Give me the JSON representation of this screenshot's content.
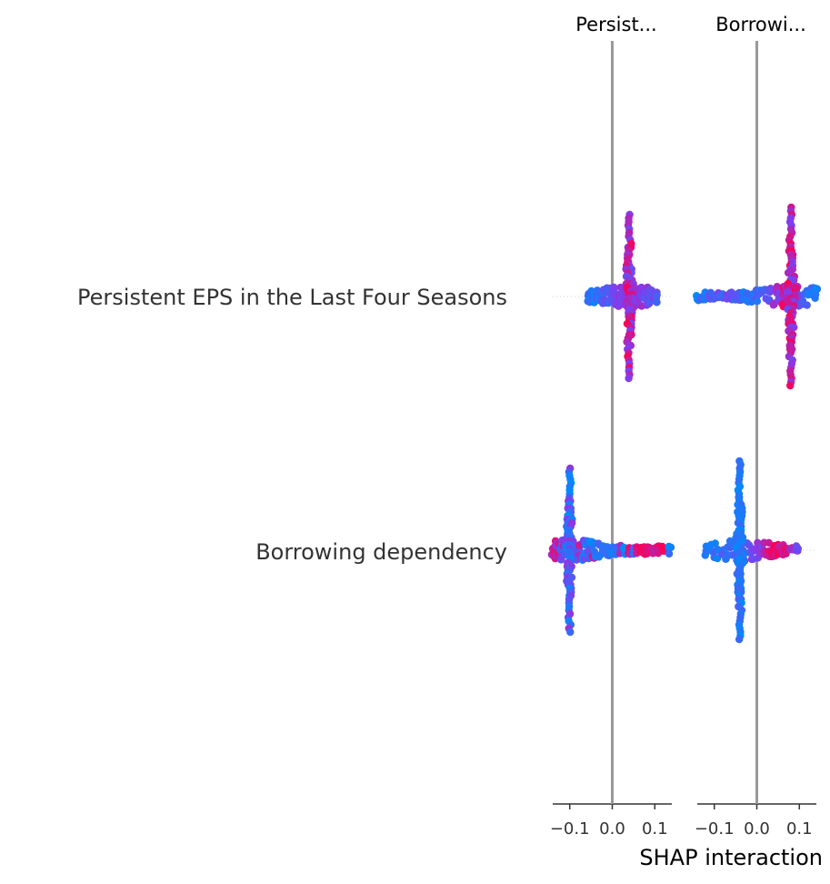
{
  "chart_data": {
    "type": "scatter",
    "plot_kind": "SHAP interaction summary (beeswarm matrix)",
    "features": [
      "Persistent EPS in the Last Four Seasons",
      "Borrowing dependency"
    ],
    "panel_titles": [
      "Persist...",
      "Borrowi..."
    ],
    "xlabel": "SHAP interaction",
    "xlim": [
      -0.14,
      0.14
    ],
    "xticks": [
      -0.1,
      0.0,
      0.1
    ],
    "xtick_labels": [
      "−0.1",
      "0.0",
      "0.1"
    ],
    "zero_line": true,
    "grid": false,
    "colormap": {
      "low": "#008bfb",
      "high": "#ff0052"
    },
    "panels": [
      {
        "column": "Persistent EPS in the Last Four Seasons",
        "rows": [
          {
            "row": "Persistent EPS in the Last Four Seasons",
            "summary": {
              "center": 0.04,
              "horizontal_range": [
                -0.06,
                0.11
              ],
              "vertical_spread_center": 0.04
            },
            "points": [
              {
                "x": -0.055,
                "v": 0.15
              },
              {
                "x": -0.05,
                "v": 0.1
              },
              {
                "x": -0.045,
                "v": 0.2
              },
              {
                "x": -0.04,
                "v": 0.12
              },
              {
                "x": -0.035,
                "v": 0.3
              },
              {
                "x": -0.03,
                "v": 0.15
              },
              {
                "x": -0.025,
                "v": 0.25
              },
              {
                "x": -0.02,
                "v": 0.2
              },
              {
                "x": -0.015,
                "v": 0.35
              },
              {
                "x": -0.01,
                "v": 0.3
              },
              {
                "x": -0.005,
                "v": 0.4
              },
              {
                "x": 0.0,
                "v": 0.35
              },
              {
                "x": 0.005,
                "v": 0.45
              },
              {
                "x": 0.01,
                "v": 0.4
              },
              {
                "x": 0.015,
                "v": 0.5
              },
              {
                "x": 0.02,
                "v": 0.45
              },
              {
                "x": 0.025,
                "v": 0.55
              },
              {
                "x": 0.03,
                "v": 0.5
              },
              {
                "x": 0.035,
                "v": 0.6
              },
              {
                "x": 0.04,
                "v": 0.7
              },
              {
                "x": 0.045,
                "v": 0.65
              },
              {
                "x": 0.05,
                "v": 0.6
              },
              {
                "x": 0.055,
                "v": 0.55
              },
              {
                "x": 0.06,
                "v": 0.6
              },
              {
                "x": 0.065,
                "v": 0.5
              },
              {
                "x": 0.07,
                "v": 0.55
              },
              {
                "x": 0.075,
                "v": 0.5
              },
              {
                "x": 0.08,
                "v": 0.45
              },
              {
                "x": 0.085,
                "v": 0.5
              },
              {
                "x": 0.09,
                "v": 0.4
              },
              {
                "x": 0.095,
                "v": 0.45
              },
              {
                "x": 0.1,
                "v": 0.4
              },
              {
                "x": 0.105,
                "v": 0.35
              }
            ]
          },
          {
            "row": "Borrowing dependency",
            "summary": {
              "center": -0.1,
              "horizontal_range": [
                -0.14,
                0.135
              ],
              "vertical_spread_center": -0.1
            },
            "points": [
              {
                "x": -0.14,
                "v": 0.7
              },
              {
                "x": -0.135,
                "v": 0.9
              },
              {
                "x": -0.13,
                "v": 0.5
              },
              {
                "x": -0.125,
                "v": 0.8
              },
              {
                "x": -0.12,
                "v": 0.3
              },
              {
                "x": -0.115,
                "v": 0.6
              },
              {
                "x": -0.11,
                "v": 0.2
              },
              {
                "x": -0.105,
                "v": 0.5
              },
              {
                "x": -0.1,
                "v": 0.4
              },
              {
                "x": -0.095,
                "v": 0.6
              },
              {
                "x": -0.09,
                "v": 0.2
              },
              {
                "x": -0.085,
                "v": 0.5
              },
              {
                "x": -0.08,
                "v": 0.3
              },
              {
                "x": -0.075,
                "v": 0.7
              },
              {
                "x": -0.07,
                "v": 0.2
              },
              {
                "x": -0.065,
                "v": 0.4
              },
              {
                "x": -0.06,
                "v": 0.15
              },
              {
                "x": -0.055,
                "v": 0.3
              },
              {
                "x": -0.05,
                "v": 0.1
              },
              {
                "x": -0.045,
                "v": 0.8
              },
              {
                "x": -0.04,
                "v": 0.1
              },
              {
                "x": -0.03,
                "v": 0.2
              },
              {
                "x": -0.02,
                "v": 0.1
              },
              {
                "x": -0.01,
                "v": 0.15
              },
              {
                "x": 0.0,
                "v": 0.1
              },
              {
                "x": 0.01,
                "v": 0.2
              },
              {
                "x": 0.02,
                "v": 0.7
              },
              {
                "x": 0.03,
                "v": 0.1
              },
              {
                "x": 0.04,
                "v": 0.8
              },
              {
                "x": 0.05,
                "v": 0.2
              },
              {
                "x": 0.06,
                "v": 0.85
              },
              {
                "x": 0.07,
                "v": 0.9
              },
              {
                "x": 0.075,
                "v": 0.95
              },
              {
                "x": 0.08,
                "v": 0.9
              },
              {
                "x": 0.085,
                "v": 0.95
              },
              {
                "x": 0.09,
                "v": 0.85
              },
              {
                "x": 0.095,
                "v": 0.9
              },
              {
                "x": 0.1,
                "v": 0.8
              },
              {
                "x": 0.11,
                "v": 0.85
              },
              {
                "x": 0.12,
                "v": 0.9
              },
              {
                "x": 0.135,
                "v": 0.1
              }
            ]
          }
        ]
      },
      {
        "column": "Borrowing dependency",
        "rows": [
          {
            "row": "Persistent EPS in the Last Four Seasons",
            "summary": {
              "center": 0.08,
              "horizontal_range": [
                -0.14,
                0.14
              ],
              "vertical_spread_center": 0.08
            },
            "points": [
              {
                "x": -0.14,
                "v": 0.1
              },
              {
                "x": -0.13,
                "v": 0.2
              },
              {
                "x": -0.12,
                "v": 0.15
              },
              {
                "x": -0.11,
                "v": 0.3
              },
              {
                "x": -0.1,
                "v": 0.2
              },
              {
                "x": -0.09,
                "v": 0.4
              },
              {
                "x": -0.08,
                "v": 0.3
              },
              {
                "x": -0.07,
                "v": 0.5
              },
              {
                "x": -0.06,
                "v": 0.4
              },
              {
                "x": -0.05,
                "v": 0.3
              },
              {
                "x": -0.04,
                "v": 0.2
              },
              {
                "x": -0.03,
                "v": 0.1
              },
              {
                "x": -0.02,
                "v": 0.2
              },
              {
                "x": -0.01,
                "v": 0.15
              },
              {
                "x": 0.0,
                "v": 0.25
              },
              {
                "x": 0.01,
                "v": 0.2
              },
              {
                "x": 0.02,
                "v": 0.3
              },
              {
                "x": 0.03,
                "v": 0.4
              },
              {
                "x": 0.04,
                "v": 0.5
              },
              {
                "x": 0.05,
                "v": 0.6
              },
              {
                "x": 0.055,
                "v": 0.5
              },
              {
                "x": 0.06,
                "v": 0.7
              },
              {
                "x": 0.065,
                "v": 0.9
              },
              {
                "x": 0.07,
                "v": 0.6
              },
              {
                "x": 0.075,
                "v": 0.95
              },
              {
                "x": 0.08,
                "v": 0.7
              },
              {
                "x": 0.085,
                "v": 0.9
              },
              {
                "x": 0.09,
                "v": 0.5
              },
              {
                "x": 0.095,
                "v": 0.8
              },
              {
                "x": 0.1,
                "v": 0.4
              },
              {
                "x": 0.11,
                "v": 0.3
              },
              {
                "x": 0.12,
                "v": 0.2
              },
              {
                "x": 0.13,
                "v": 0.15
              },
              {
                "x": 0.14,
                "v": 0.1
              }
            ]
          },
          {
            "row": "Borrowing dependency",
            "summary": {
              "center": -0.04,
              "horizontal_range": [
                -0.12,
                0.095
              ],
              "vertical_spread_center": -0.04
            },
            "points": [
              {
                "x": -0.12,
                "v": 0.05
              },
              {
                "x": -0.11,
                "v": 0.1
              },
              {
                "x": -0.1,
                "v": 0.15
              },
              {
                "x": -0.09,
                "v": 0.1
              },
              {
                "x": -0.08,
                "v": 0.2
              },
              {
                "x": -0.07,
                "v": 0.15
              },
              {
                "x": -0.06,
                "v": 0.25
              },
              {
                "x": -0.05,
                "v": 0.2
              },
              {
                "x": -0.045,
                "v": 0.3
              },
              {
                "x": -0.04,
                "v": 0.1
              },
              {
                "x": -0.035,
                "v": 0.35
              },
              {
                "x": -0.03,
                "v": 0.3
              },
              {
                "x": -0.02,
                "v": 0.4
              },
              {
                "x": -0.01,
                "v": 0.5
              },
              {
                "x": 0.0,
                "v": 0.5
              },
              {
                "x": 0.01,
                "v": 0.55
              },
              {
                "x": 0.02,
                "v": 0.7
              },
              {
                "x": 0.03,
                "v": 0.8
              },
              {
                "x": 0.035,
                "v": 0.9
              },
              {
                "x": 0.04,
                "v": 0.95
              },
              {
                "x": 0.045,
                "v": 0.9
              },
              {
                "x": 0.05,
                "v": 0.95
              },
              {
                "x": 0.055,
                "v": 0.85
              },
              {
                "x": 0.06,
                "v": 0.9
              },
              {
                "x": 0.07,
                "v": 0.8
              },
              {
                "x": 0.08,
                "v": 0.7
              },
              {
                "x": 0.095,
                "v": 0.4
              }
            ]
          }
        ]
      }
    ]
  }
}
